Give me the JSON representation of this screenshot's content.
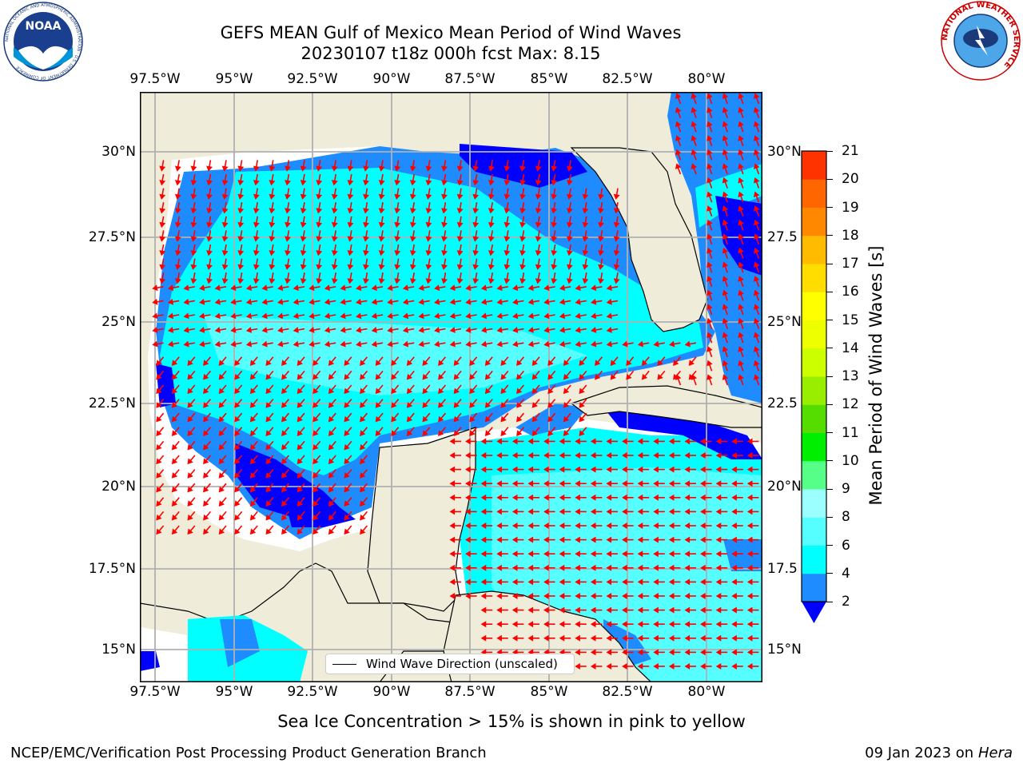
{
  "header": {
    "title": "GEFS MEAN Gulf of Mexico Mean Period of Wind Waves",
    "subtitle": "20230107 t18z 000h fcst   Max: 8.15"
  },
  "logos": {
    "noaa": {
      "text": "NOAA",
      "ring_text": "NATIONAL OCEANIC AND ATMOSPHERIC ADMINISTRATION · U.S. DEPARTMENT OF COMMERCE"
    },
    "nws": {
      "ring_text": "NATIONAL WEATHER SERVICE"
    }
  },
  "map": {
    "lon_ticks": [
      "97.5°W",
      "95°W",
      "92.5°W",
      "90°W",
      "87.5°W",
      "85°W",
      "82.5°W",
      "80°W"
    ],
    "lat_ticks_left": [
      "30°N",
      "27.5°N",
      "25°N",
      "22.5°N",
      "20°N",
      "17.5°N",
      "15°N"
    ],
    "lat_ticks_right": [
      "30°N",
      "27.5",
      "25°N",
      "22.5",
      "20°N",
      "17.5",
      "15°N"
    ],
    "legend_label": "Wind Wave Direction (unscaled)",
    "colors": {
      "land": "#efedda",
      "ocean_2_4": "#1e8cff",
      "ocean_4_6": "#00ffff",
      "ocean_6_8": "#55ffff",
      "deep_lt2": "#0000ff",
      "no_data": "#ffffff",
      "arrows": "#ff0000",
      "grid": "#b0b0b0"
    }
  },
  "colorbar": {
    "label": "Mean Period of Wind Waves [s]",
    "ticks": [
      "2",
      "4",
      "6",
      "8",
      "9",
      "10",
      "11",
      "12",
      "13",
      "14",
      "15",
      "16",
      "17",
      "18",
      "19",
      "20",
      "21"
    ],
    "colors": [
      "#1e8cff",
      "#00ffff",
      "#55ffff",
      "#9bffff",
      "#55ff88",
      "#00ee00",
      "#55dd00",
      "#99ee00",
      "#ccff00",
      "#eeff00",
      "#ffff00",
      "#ffdd00",
      "#ffbb00",
      "#ff8800",
      "#ff6600",
      "#ff3300",
      "#ff0000"
    ],
    "extend_color": "#0000ff"
  },
  "footer": {
    "note": "Sea Ice Concentration > 15% is shown in pink to yellow",
    "credit": "NCEP/EMC/Verification Post Processing Product Generation Branch",
    "date": "09 Jan 2023 on ",
    "host": "Hera"
  }
}
